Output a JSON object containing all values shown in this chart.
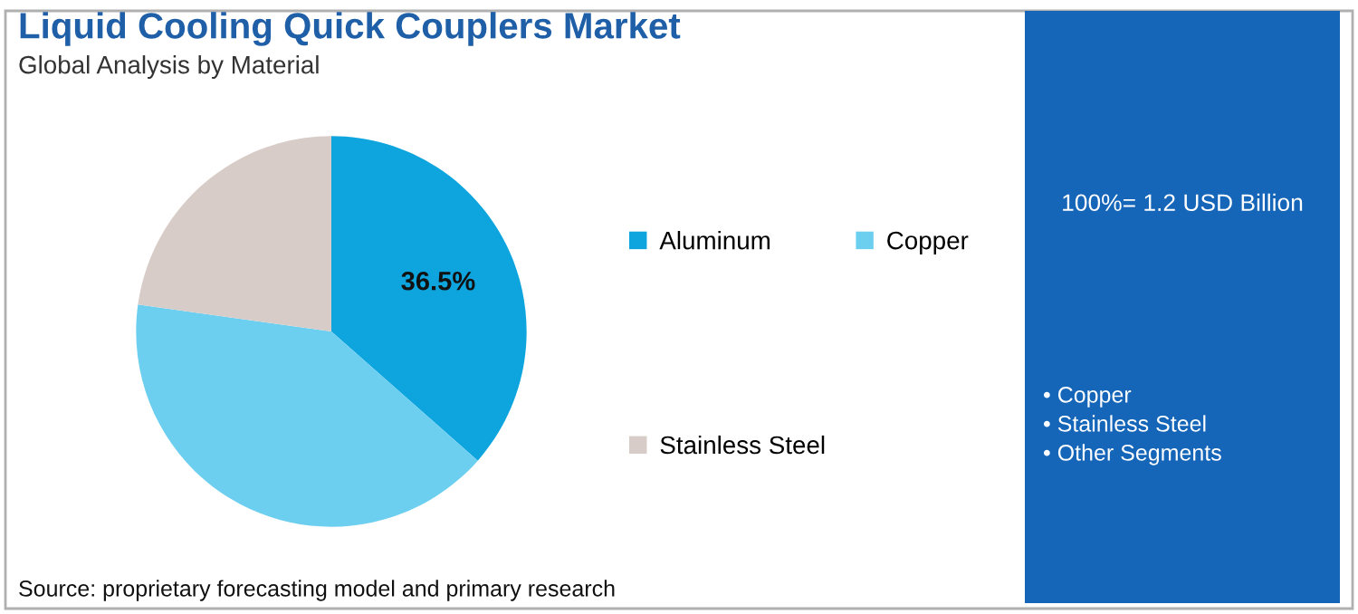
{
  "chart_data": {
    "type": "pie",
    "title": "Liquid Cooling Quick Couplers Market",
    "subtitle": "Global Analysis by Material",
    "categories": [
      "Aluminum",
      "Copper",
      "Stainless Steel"
    ],
    "values": [
      36.5,
      40.7,
      22.8
    ],
    "colors": [
      "#0ea5df",
      "#6dcff0",
      "#d8ccc8"
    ],
    "value_labels": [
      "36.5%",
      null,
      null
    ],
    "legend": "right",
    "annotations": [
      "Source: proprietary forecasting model and primary research",
      "100%= 1.2 USD Billion",
      "• Copper",
      "• Stainless Steel",
      "• Other Segments"
    ]
  }
}
